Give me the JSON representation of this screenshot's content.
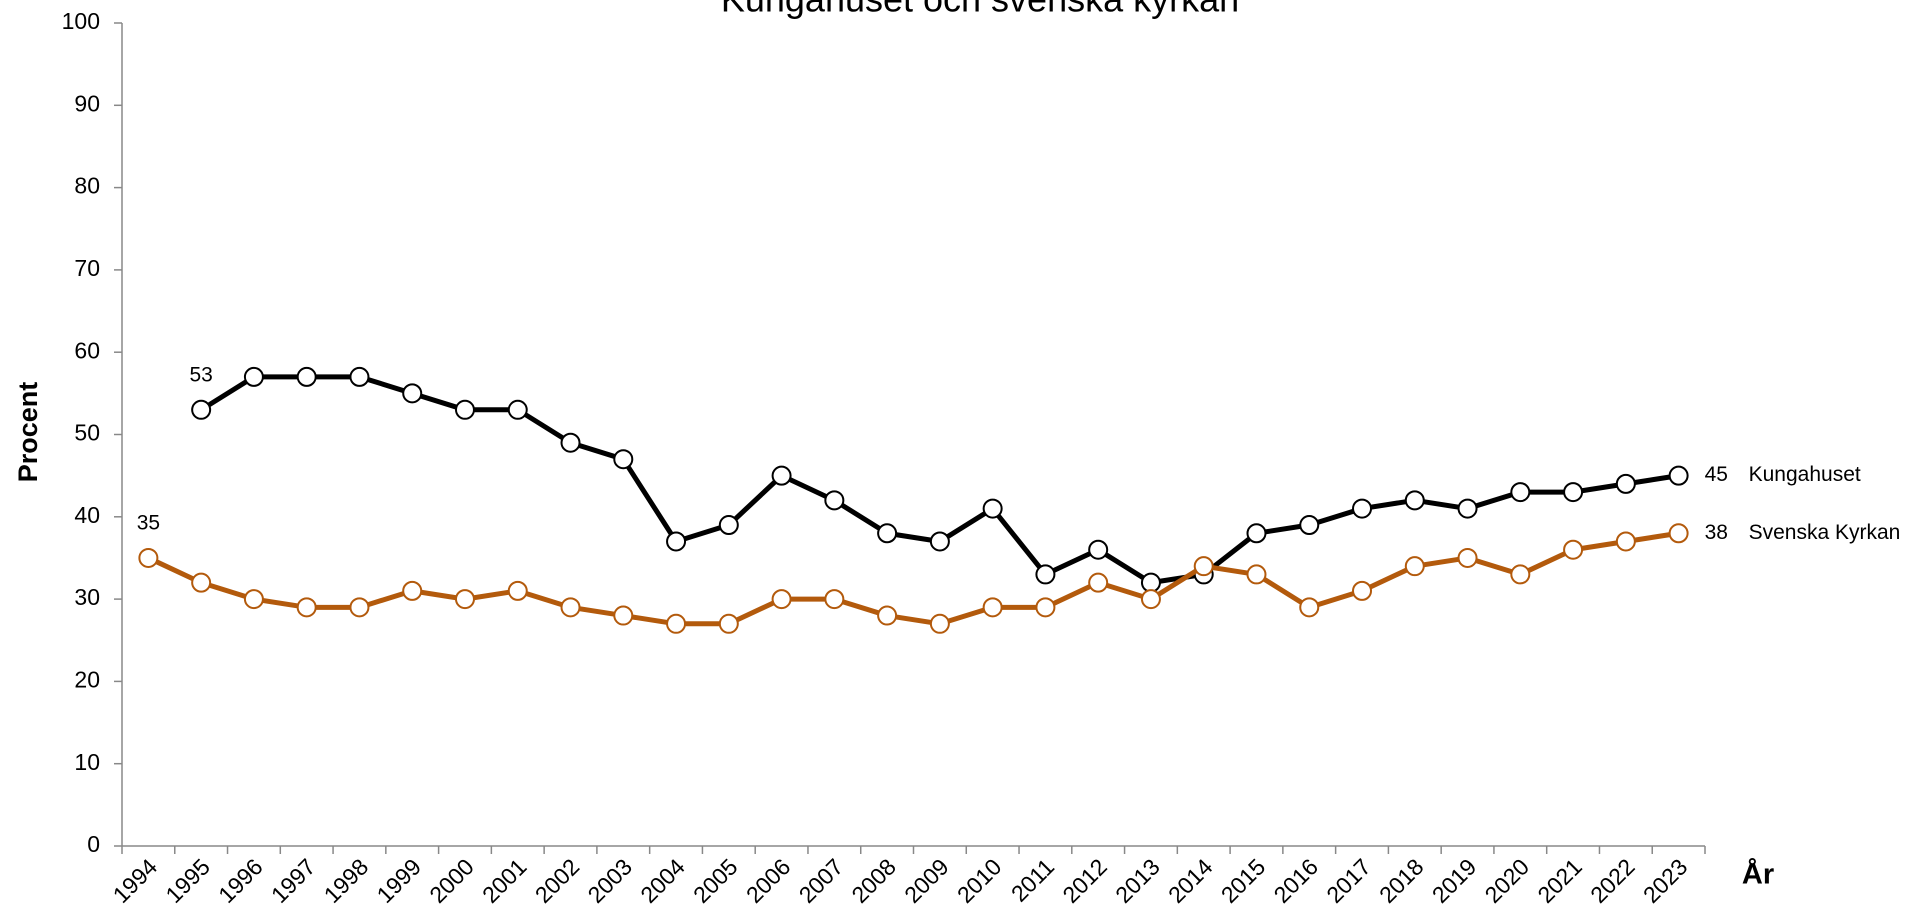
{
  "chart_data": {
    "type": "line",
    "title": "Kungahuset och svenska kyrkan",
    "y_label": "Procent",
    "x_label": "År",
    "categories": [
      "1994",
      "1995",
      "1996",
      "1997",
      "1998",
      "1999",
      "2000",
      "2001",
      "2002",
      "2003",
      "2004",
      "2005",
      "2006",
      "2007",
      "2008",
      "2009",
      "2010",
      "2011",
      "2012",
      "2013",
      "2014",
      "2015",
      "2016",
      "2017",
      "2018",
      "2019",
      "2020",
      "2021",
      "2022",
      "2023"
    ],
    "series": [
      {
        "name": "Kungahuset",
        "color": "#000000",
        "values": [
          null,
          53,
          57,
          57,
          57,
          55,
          53,
          53,
          49,
          47,
          37,
          39,
          45,
          42,
          38,
          37,
          41,
          33,
          36,
          32,
          33,
          38,
          39,
          41,
          42,
          41,
          43,
          43,
          44,
          45
        ]
      },
      {
        "name": "Svenska Kyrkan",
        "color": "#b35a0c",
        "values": [
          35,
          32,
          30,
          29,
          29,
          31,
          30,
          31,
          29,
          28,
          27,
          27,
          30,
          30,
          28,
          27,
          29,
          29,
          32,
          30,
          34,
          33,
          29,
          31,
          34,
          35,
          33,
          36,
          37,
          38
        ]
      }
    ],
    "ylim": [
      0,
      100
    ],
    "yticks": [
      0,
      10,
      20,
      30,
      40,
      50,
      60,
      70,
      80,
      90,
      100
    ],
    "grid": false
  }
}
